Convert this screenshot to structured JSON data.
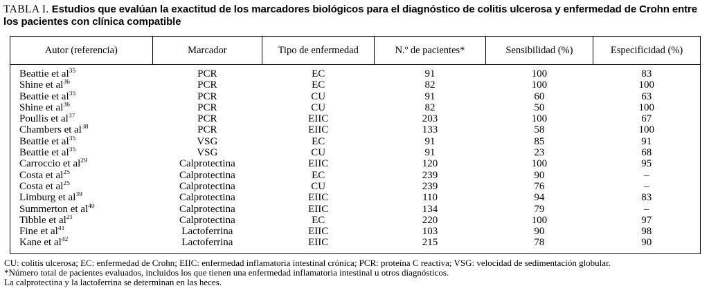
{
  "title": {
    "label": "TABLA I.",
    "text": "Estudios que evalúan la exactitud de los marcadores biológicos para el diagnóstico de colitis ulcerosa y enfermedad de Crohn entre los pacientes con clínica compatible"
  },
  "table": {
    "columns": [
      "Autor (referencia)",
      "Marcador",
      "Tipo de enfermedad",
      "N.º de pacientes*",
      "Sensibilidad (%)",
      "Especificidad (%)"
    ],
    "rows": [
      {
        "author": "Beattie et al",
        "ref": "35",
        "marker": "PCR",
        "disease": "EC",
        "patients": "91",
        "sensitivity": "100",
        "specificity": "83"
      },
      {
        "author": "Shine et al",
        "ref": "36",
        "marker": "PCR",
        "disease": "EC",
        "patients": "82",
        "sensitivity": "100",
        "specificity": "100"
      },
      {
        "author": "Beattie et al",
        "ref": "35",
        "marker": "PCR",
        "disease": "CU",
        "patients": "91",
        "sensitivity": "60",
        "specificity": "63"
      },
      {
        "author": "Shine et al",
        "ref": "36",
        "marker": "PCR",
        "disease": "CU",
        "patients": "82",
        "sensitivity": "50",
        "specificity": "100"
      },
      {
        "author": "Poullis et al",
        "ref": "37",
        "marker": "PCR",
        "disease": "EIIC",
        "patients": "203",
        "sensitivity": "100",
        "specificity": "67"
      },
      {
        "author": "Chambers et al",
        "ref": "38",
        "marker": "PCR",
        "disease": "EIIC",
        "patients": "133",
        "sensitivity": "58",
        "specificity": "100"
      },
      {
        "author": "Beattie et al",
        "ref": "35",
        "marker": "VSG",
        "disease": "EC",
        "patients": "91",
        "sensitivity": "85",
        "specificity": "91"
      },
      {
        "author": "Beattie et al",
        "ref": "35",
        "marker": "VSG",
        "disease": "CU",
        "patients": "91",
        "sensitivity": "23",
        "specificity": "68"
      },
      {
        "author": "Carroccio et al",
        "ref": "29",
        "marker": "Calprotectina",
        "disease": "EIIC",
        "patients": "120",
        "sensitivity": "100",
        "specificity": "95"
      },
      {
        "author": "Costa et al",
        "ref": "25",
        "marker": "Calprotectina",
        "disease": "EC",
        "patients": "239",
        "sensitivity": "90",
        "specificity": "–"
      },
      {
        "author": "Costa et al",
        "ref": "25",
        "marker": "Calprotectina",
        "disease": "CU",
        "patients": "239",
        "sensitivity": "76",
        "specificity": "–"
      },
      {
        "author": "Limburg et al",
        "ref": "39",
        "marker": "Calprotectina",
        "disease": "EIIC",
        "patients": "110",
        "sensitivity": "94",
        "specificity": "83"
      },
      {
        "author": "Summerton et al",
        "ref": "40",
        "marker": "Calprotectina",
        "disease": "EIIC",
        "patients": "134",
        "sensitivity": "79",
        "specificity": "–"
      },
      {
        "author": "Tibble et al",
        "ref": "21",
        "marker": "Calprotectina",
        "disease": "EC",
        "patients": "220",
        "sensitivity": "100",
        "specificity": "97"
      },
      {
        "author": "Fine et al",
        "ref": "41",
        "marker": "Lactoferrina",
        "disease": "EIIC",
        "patients": "103",
        "sensitivity": "90",
        "specificity": "98"
      },
      {
        "author": "Kane et al",
        "ref": "42",
        "marker": "Lactoferrina",
        "disease": "EIIC",
        "patients": "215",
        "sensitivity": "78",
        "specificity": "90"
      }
    ]
  },
  "footnotes": {
    "abbreviations": "CU: colitis ulcerosa; EC: enfermedad de Crohn; EIIC: enfermedad inflamatoria intestinal crónica; PCR: proteína C reactiva; VSG: velocidad de sedimentación globular.",
    "note_patients": "*Número total de pacientes evaluados, incluidos los que tienen una enfermedad inflamatoria intestinal u otros diagnósticos.",
    "note_feces": "La calprotectina y la lactoferrina se determinan en las heces."
  },
  "colors": {
    "text": "#000000",
    "border": "#000000",
    "background": "#ffffff"
  }
}
